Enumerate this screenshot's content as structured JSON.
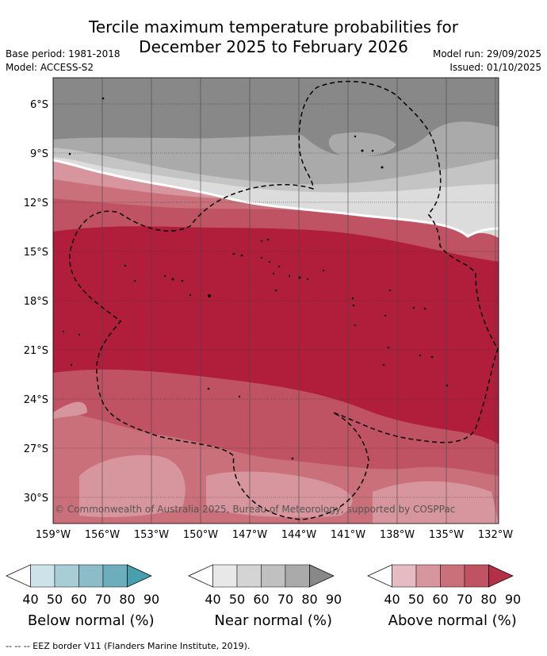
{
  "title": {
    "line1": "Tercile maximum temperature probabilities for",
    "line2": "December 2025 to February 2026"
  },
  "meta": {
    "base_period": "Base period: 1981-2018",
    "model": "Model: ACCESS-S2",
    "model_run": "Model run: 29/09/2025",
    "issued": "Issued: 01/10/2025"
  },
  "axes": {
    "lat_labels": [
      "6°S",
      "9°S",
      "12°S",
      "15°S",
      "18°S",
      "21°S",
      "24°S",
      "27°S",
      "30°S"
    ],
    "lon_labels": [
      "159°W",
      "156°W",
      "153°W",
      "150°W",
      "147°W",
      "144°W",
      "141°W",
      "138°W",
      "135°W",
      "132°W"
    ]
  },
  "copyright": "© Commonwealth of Australia 2025, Bureau of Meteorology, supported by COSPPac",
  "colorbars": [
    {
      "label": "Below normal (%)",
      "ticks": [
        "40",
        "50",
        "60",
        "70",
        "80",
        "90"
      ],
      "colors": [
        "#ffffff",
        "#cde3ea",
        "#a9cdd5",
        "#8cbcc8",
        "#6daebc",
        "#479faf"
      ]
    },
    {
      "label": "Near normal (%)",
      "ticks": [
        "40",
        "50",
        "60",
        "70",
        "80",
        "90"
      ],
      "colors": [
        "#ffffff",
        "#e8e8e8",
        "#d4d4d4",
        "#c0c0c0",
        "#aaaaaa",
        "#888888"
      ]
    },
    {
      "label": "Above normal (%)",
      "ticks": [
        "40",
        "50",
        "60",
        "70",
        "80",
        "90"
      ],
      "colors": [
        "#ffffff",
        "#e6bcc2",
        "#d7959d",
        "#c9707b",
        "#c05363",
        "#b43047"
      ]
    }
  ],
  "footer": "--  --  -- EEZ border V11 (Flanders Marine Institute, 2019).",
  "colors": {
    "near_dark": "#888888",
    "near_mid": "#aaaaaa",
    "near_light": "#c4c4c4",
    "near_pale": "#dcdcdc",
    "above_pale": "#e6bcc2",
    "above_light": "#d7959d",
    "above_mid": "#c9707b",
    "above_strong": "#c05363",
    "above_deep": "#b01e3c"
  }
}
